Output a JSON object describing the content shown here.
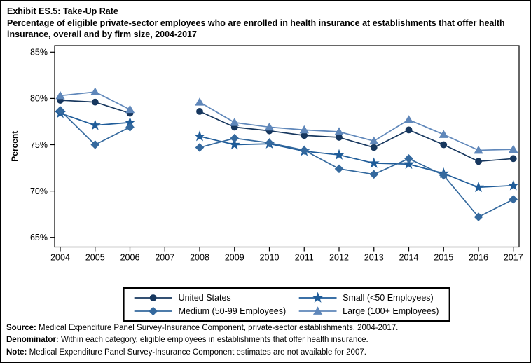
{
  "title": {
    "exhibit": "Exhibit ES.5: Take-Up Rate",
    "subtitle": "Percentage of eligible private-sector employees who are enrolled in health insurance at establishments that offer health insurance, overall and by firm size, 2004-2017"
  },
  "chart_data": {
    "type": "line",
    "title": "Exhibit ES.5: Take-Up Rate",
    "subtitle": "Percentage of eligible private-sector employees who are enrolled in health insurance at establishments that offer health insurance, overall and by firm size, 2004-2017",
    "xlabel": "",
    "ylabel": "Percent",
    "ylim": [
      65,
      85
    ],
    "y_ticks": [
      65,
      70,
      75,
      80,
      85
    ],
    "y_tick_labels": [
      "65%",
      "70%",
      "75%",
      "80%",
      "85%"
    ],
    "x": [
      2004,
      2005,
      2006,
      2007,
      2008,
      2009,
      2010,
      2011,
      2012,
      2013,
      2014,
      2015,
      2016,
      2017
    ],
    "x_tick_labels": [
      "2004",
      "2005",
      "2006",
      "2007",
      "2008",
      "2009",
      "2010",
      "2011",
      "2012",
      "2013",
      "2014",
      "2015",
      "2016",
      "2017"
    ],
    "grid": false,
    "legend_position": "bottom-center",
    "missing_data_note": "estimates not available for 2007",
    "series": [
      {
        "name": "United States",
        "marker": "circle",
        "color": "#17375E",
        "values": [
          79.8,
          79.6,
          78.4,
          null,
          78.6,
          76.9,
          76.5,
          76.0,
          75.8,
          74.7,
          76.6,
          75.0,
          73.2,
          73.5
        ]
      },
      {
        "name": "Small (<50 Employees)",
        "marker": "star",
        "color": "#1F5C99",
        "values": [
          78.4,
          77.1,
          77.4,
          null,
          75.9,
          75.0,
          75.1,
          74.3,
          73.9,
          73.0,
          72.9,
          71.9,
          70.4,
          70.6
        ]
      },
      {
        "name": "Medium (50-99 Employees)",
        "marker": "diamond",
        "color": "#34699E",
        "values": [
          78.7,
          75.0,
          76.9,
          null,
          74.7,
          75.7,
          75.2,
          74.4,
          72.4,
          71.8,
          73.5,
          71.7,
          67.2,
          69.1
        ]
      },
      {
        "name": "Large (100+ Employees)",
        "marker": "triangle",
        "color": "#5F87BA",
        "values": [
          80.3,
          80.7,
          78.8,
          null,
          79.6,
          77.4,
          76.9,
          76.6,
          76.4,
          75.4,
          77.7,
          76.1,
          74.4,
          74.5
        ]
      }
    ]
  },
  "legend": {
    "items": [
      {
        "label": "United States",
        "marker": "circle",
        "color": "#17375E"
      },
      {
        "label": "Small (<50 Employees)",
        "marker": "star",
        "color": "#1F5C99"
      },
      {
        "label": "Medium (50-99 Employees)",
        "marker": "diamond",
        "color": "#34699E"
      },
      {
        "label": "Large (100+ Employees)",
        "marker": "triangle",
        "color": "#5F87BA"
      }
    ]
  },
  "footer": {
    "source_label": "Source:",
    "source_text": " Medical Expenditure Panel Survey-Insurance Component, private-sector establishments, 2004-2017.",
    "denominator_label": "Denominator:",
    "denominator_text": " Within each category, eligible employees in establishments that offer health insurance.",
    "note_label": "Note:",
    "note_text": " Medical Expenditure Panel Survey-Insurance Component estimates are not available for 2007."
  }
}
